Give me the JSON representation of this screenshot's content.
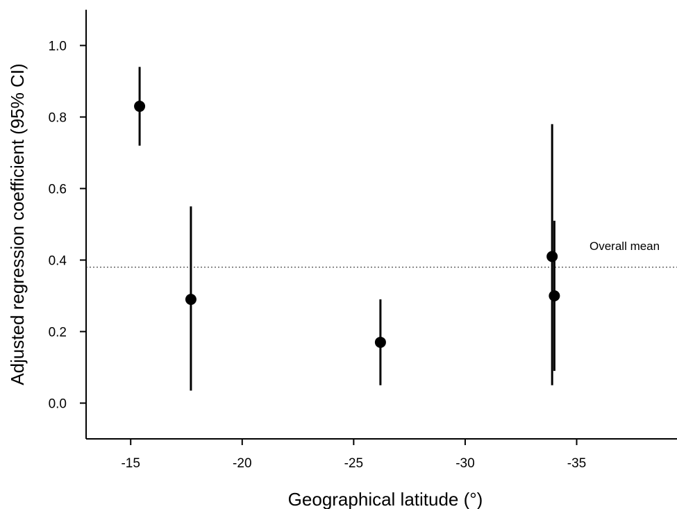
{
  "chart_data": {
    "type": "scatter",
    "xlabel": "Geographical latitude (°)",
    "ylabel": "Adjusted regression coefficient (95% CI)",
    "xlim": [
      -13,
      -39.5
    ],
    "ylim": [
      -0.1,
      1.1
    ],
    "x_ticks": [
      -15,
      -20,
      -25,
      -30,
      -35
    ],
    "y_ticks": [
      0.0,
      0.2,
      0.4,
      0.6,
      0.8,
      1.0
    ],
    "x_tick_labels": [
      "-15",
      "-20",
      "-25",
      "-30",
      "-35"
    ],
    "y_tick_labels": [
      "0.0",
      "0.2",
      "0.4",
      "0.6",
      "0.8",
      "1.0"
    ],
    "points": [
      {
        "x": -15.4,
        "y": 0.83,
        "ci_low": 0.72,
        "ci_high": 0.94
      },
      {
        "x": -17.7,
        "y": 0.29,
        "ci_low": 0.035,
        "ci_high": 0.55
      },
      {
        "x": -26.2,
        "y": 0.17,
        "ci_low": 0.05,
        "ci_high": 0.29
      },
      {
        "x": -33.9,
        "y": 0.41,
        "ci_low": 0.05,
        "ci_high": 0.78
      },
      {
        "x": -34.0,
        "y": 0.3,
        "ci_low": 0.09,
        "ci_high": 0.51
      }
    ],
    "reference_line": {
      "y": 0.38,
      "style": "dotted",
      "label": "Overall mean"
    },
    "grid": false,
    "legend": "none",
    "marker_color": "#000000"
  }
}
